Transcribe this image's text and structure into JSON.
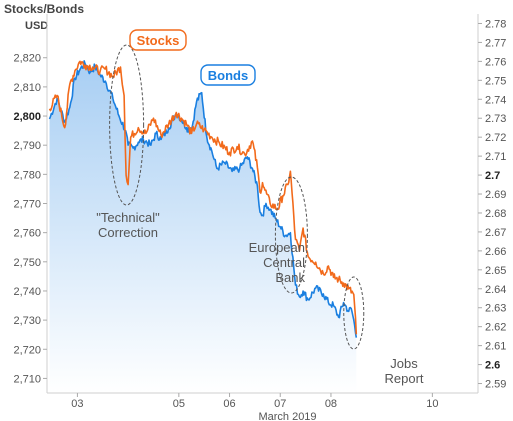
{
  "chart_data": {
    "type": "line",
    "title": "Stocks/Bonds",
    "left_axis_unit": "USD",
    "xlabel": "March 2019",
    "x_ticks": [
      {
        "label": "03",
        "day": 3
      },
      {
        "label": "05",
        "day": 5
      },
      {
        "label": "06",
        "day": 6
      },
      {
        "label": "07",
        "day": 7
      },
      {
        "label": "08",
        "day": 8
      },
      {
        "label": "10",
        "day": 10
      }
    ],
    "x_range_days": [
      2.4,
      10.9
    ],
    "left_axis": {
      "range": [
        2705,
        2835
      ],
      "ticks": [
        {
          "v": 2710,
          "label": "2,710"
        },
        {
          "v": 2720,
          "label": "2,720"
        },
        {
          "v": 2730,
          "label": "2,730"
        },
        {
          "v": 2740,
          "label": "2,740"
        },
        {
          "v": 2750,
          "label": "2,750"
        },
        {
          "v": 2760,
          "label": "2,760"
        },
        {
          "v": 2770,
          "label": "2,770"
        },
        {
          "v": 2780,
          "label": "2,780"
        },
        {
          "v": 2790,
          "label": "2,790"
        },
        {
          "v": 2800,
          "label": "2,800",
          "bold": true
        },
        {
          "v": 2810,
          "label": "2,810"
        },
        {
          "v": 2820,
          "label": "2,820"
        }
      ]
    },
    "right_axis": {
      "range": [
        2.585,
        2.785
      ],
      "ticks": [
        {
          "v": 2.59,
          "label": "2.59"
        },
        {
          "v": 2.6,
          "label": "2.6",
          "bold": true
        },
        {
          "v": 2.61,
          "label": "2.61"
        },
        {
          "v": 2.62,
          "label": "2.62"
        },
        {
          "v": 2.63,
          "label": "2.63"
        },
        {
          "v": 2.64,
          "label": "2.64"
        },
        {
          "v": 2.65,
          "label": "2.65"
        },
        {
          "v": 2.66,
          "label": "2.66"
        },
        {
          "v": 2.67,
          "label": "2.67"
        },
        {
          "v": 2.68,
          "label": "2.68"
        },
        {
          "v": 2.69,
          "label": "2.69"
        },
        {
          "v": 2.7,
          "label": "2.7",
          "bold": true
        },
        {
          "v": 2.71,
          "label": "2.71"
        },
        {
          "v": 2.72,
          "label": "2.72"
        },
        {
          "v": 2.73,
          "label": "2.73"
        },
        {
          "v": 2.74,
          "label": "2.74"
        },
        {
          "v": 2.75,
          "label": "2.75"
        },
        {
          "v": 2.76,
          "label": "2.76"
        },
        {
          "v": 2.77,
          "label": "2.77"
        },
        {
          "v": 2.78,
          "label": "2.78"
        }
      ]
    },
    "series": [
      {
        "name": "Bonds",
        "color": "#1a7fe0",
        "axis": "left",
        "fill": true,
        "x": [
          2.45,
          2.6,
          2.75,
          2.85,
          2.95,
          3.05,
          3.15,
          3.25,
          3.35,
          3.45,
          3.55,
          3.7,
          3.82,
          3.95,
          4.0,
          4.1,
          4.2,
          4.3,
          4.45,
          4.55,
          4.65,
          4.8,
          4.95,
          5.05,
          5.15,
          5.25,
          5.35,
          5.45,
          5.55,
          5.65,
          5.75,
          5.9,
          6.05,
          6.2,
          6.35,
          6.45,
          6.55,
          6.6,
          6.65,
          6.72,
          6.8,
          6.9,
          7.0,
          7.1,
          7.2,
          7.3,
          7.38,
          7.45,
          7.55,
          7.7,
          7.85,
          7.95,
          8.05,
          8.15,
          8.25,
          8.35,
          8.4,
          8.45,
          8.5
        ],
        "y": [
          2799,
          2806,
          2798,
          2803,
          2813,
          2816,
          2818,
          2815,
          2817,
          2814,
          2812,
          2806,
          2800,
          2795,
          2790,
          2789,
          2791,
          2792,
          2790,
          2794,
          2792,
          2796,
          2801,
          2799,
          2796,
          2795,
          2805,
          2808,
          2793,
          2788,
          2782,
          2784,
          2781,
          2782,
          2786,
          2782,
          2776,
          2767,
          2766,
          2770,
          2768,
          2765,
          2762,
          2759,
          2760,
          2742,
          2738,
          2740,
          2737,
          2741,
          2739,
          2736,
          2735,
          2731,
          2736,
          2733,
          2734,
          2730,
          2724
        ]
      },
      {
        "name": "Stocks",
        "color": "#f26a1b",
        "axis": "right",
        "fill": false,
        "x": [
          2.45,
          2.6,
          2.75,
          2.85,
          2.95,
          3.05,
          3.15,
          3.3,
          3.45,
          3.55,
          3.7,
          3.85,
          3.92,
          3.96,
          4.0,
          4.05,
          4.2,
          4.35,
          4.5,
          4.65,
          4.8,
          4.95,
          5.05,
          5.15,
          5.25,
          5.35,
          5.5,
          5.65,
          5.8,
          6.0,
          6.15,
          6.3,
          6.45,
          6.55,
          6.6,
          6.65,
          6.7,
          6.8,
          6.95,
          7.05,
          7.15,
          7.2,
          7.3,
          7.38,
          7.45,
          7.55,
          7.7,
          7.85,
          7.95,
          8.05,
          8.15,
          8.25,
          8.35,
          8.45,
          8.5
        ],
        "y": [
          2.735,
          2.742,
          2.725,
          2.748,
          2.755,
          2.76,
          2.758,
          2.757,
          2.755,
          2.756,
          2.752,
          2.757,
          2.742,
          2.7,
          2.695,
          2.72,
          2.725,
          2.722,
          2.73,
          2.721,
          2.727,
          2.733,
          2.73,
          2.727,
          2.722,
          2.727,
          2.724,
          2.72,
          2.717,
          2.712,
          2.715,
          2.711,
          2.718,
          2.704,
          2.691,
          2.696,
          2.692,
          2.685,
          2.682,
          2.689,
          2.695,
          2.702,
          2.666,
          2.66,
          2.672,
          2.657,
          2.654,
          2.648,
          2.652,
          2.646,
          2.645,
          2.643,
          2.64,
          2.637,
          2.616
        ]
      }
    ],
    "annotations": [
      {
        "lines": [
          "\"Technical\"",
          "Correction"
        ],
        "day": 3.95
      },
      {
        "lines": [
          "European",
          "Central",
          "Bank"
        ],
        "day": 7.25
      },
      {
        "lines": [
          "Jobs",
          "Report"
        ],
        "day": 8.45
      }
    ]
  }
}
